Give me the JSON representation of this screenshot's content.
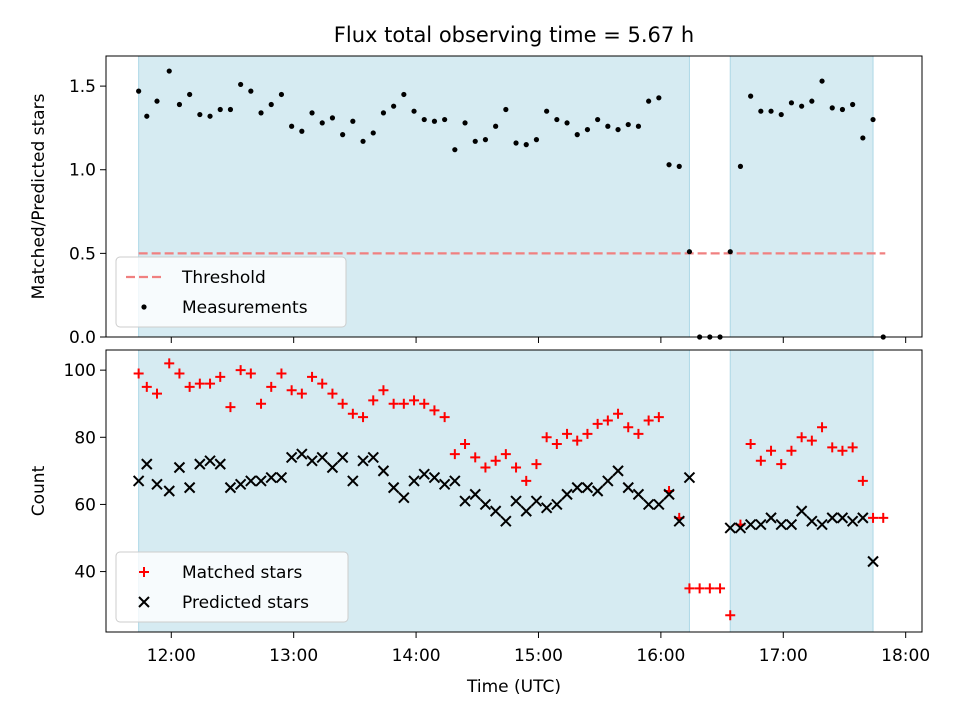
{
  "title": "Flux total observing time = 5.67 h",
  "colors": {
    "shade": "#add8e6",
    "threshold": "#f08080",
    "measurement": "#000000",
    "matched": "#ff0000",
    "predicted": "#000000"
  },
  "chart_data": [
    {
      "type": "scatter",
      "ylabel": "Matched/Predicted stars",
      "ylim": [
        0,
        1.68
      ],
      "xlim": [
        "11:28",
        "18:08"
      ],
      "y_ticks": [
        "0.0",
        "0.5",
        "1.0",
        "1.5"
      ],
      "shaded_intervals": [
        [
          "11:44",
          "16:14"
        ],
        [
          "16:34",
          "17:44"
        ]
      ],
      "legend": {
        "placement": "lower-left",
        "entries": [
          "Threshold",
          "Measurements"
        ]
      },
      "threshold": {
        "name": "Threshold",
        "value": 0.5,
        "x_start": "11:44",
        "x_end": "17:50"
      },
      "series": [
        {
          "name": "Measurements",
          "points": [
            [
              "11:44",
              1.47
            ],
            [
              "11:48",
              1.32
            ],
            [
              "11:53",
              1.41
            ],
            [
              "11:59",
              1.59
            ],
            [
              "12:04",
              1.39
            ],
            [
              "12:09",
              1.45
            ],
            [
              "12:14",
              1.33
            ],
            [
              "12:19",
              1.32
            ],
            [
              "12:24",
              1.36
            ],
            [
              "12:29",
              1.36
            ],
            [
              "12:34",
              1.51
            ],
            [
              "12:39",
              1.47
            ],
            [
              "12:44",
              1.34
            ],
            [
              "12:49",
              1.39
            ],
            [
              "12:54",
              1.45
            ],
            [
              "12:59",
              1.26
            ],
            [
              "13:04",
              1.23
            ],
            [
              "13:09",
              1.34
            ],
            [
              "13:14",
              1.28
            ],
            [
              "13:19",
              1.31
            ],
            [
              "13:24",
              1.21
            ],
            [
              "13:29",
              1.29
            ],
            [
              "13:34",
              1.17
            ],
            [
              "13:39",
              1.22
            ],
            [
              "13:44",
              1.34
            ],
            [
              "13:49",
              1.38
            ],
            [
              "13:54",
              1.45
            ],
            [
              "13:59",
              1.35
            ],
            [
              "14:04",
              1.3
            ],
            [
              "14:09",
              1.29
            ],
            [
              "14:14",
              1.3
            ],
            [
              "14:19",
              1.12
            ],
            [
              "14:24",
              1.28
            ],
            [
              "14:29",
              1.17
            ],
            [
              "14:34",
              1.18
            ],
            [
              "14:39",
              1.26
            ],
            [
              "14:44",
              1.36
            ],
            [
              "14:49",
              1.16
            ],
            [
              "14:54",
              1.15
            ],
            [
              "14:59",
              1.18
            ],
            [
              "15:04",
              1.35
            ],
            [
              "15:09",
              1.3
            ],
            [
              "15:14",
              1.28
            ],
            [
              "15:19",
              1.21
            ],
            [
              "15:24",
              1.24
            ],
            [
              "15:29",
              1.3
            ],
            [
              "15:34",
              1.26
            ],
            [
              "15:39",
              1.24
            ],
            [
              "15:44",
              1.27
            ],
            [
              "15:49",
              1.26
            ],
            [
              "15:54",
              1.41
            ],
            [
              "15:59",
              1.43
            ],
            [
              "16:04",
              1.03
            ],
            [
              "16:09",
              1.02
            ],
            [
              "16:14",
              0.51
            ],
            [
              "16:19",
              0.0
            ],
            [
              "16:24",
              0.0
            ],
            [
              "16:29",
              0.0
            ],
            [
              "16:34",
              0.51
            ],
            [
              "16:39",
              1.02
            ],
            [
              "16:44",
              1.44
            ],
            [
              "16:49",
              1.35
            ],
            [
              "16:54",
              1.35
            ],
            [
              "16:59",
              1.33
            ],
            [
              "17:04",
              1.4
            ],
            [
              "17:09",
              1.38
            ],
            [
              "17:14",
              1.41
            ],
            [
              "17:19",
              1.53
            ],
            [
              "17:24",
              1.37
            ],
            [
              "17:29",
              1.36
            ],
            [
              "17:34",
              1.39
            ],
            [
              "17:39",
              1.19
            ],
            [
              "17:44",
              1.3
            ],
            [
              "17:49",
              0.0
            ]
          ]
        }
      ]
    },
    {
      "type": "scatter",
      "xlabel": "Time (UTC)",
      "ylabel": "Count",
      "ylim": [
        22,
        106
      ],
      "xlim": [
        "11:28",
        "18:08"
      ],
      "x_ticks": [
        "12:00",
        "13:00",
        "14:00",
        "15:00",
        "16:00",
        "17:00",
        "18:00"
      ],
      "y_ticks": [
        "40",
        "60",
        "80",
        "100"
      ],
      "shaded_intervals": [
        [
          "11:44",
          "16:14"
        ],
        [
          "16:34",
          "17:44"
        ]
      ],
      "legend": {
        "placement": "lower-left",
        "entries": [
          "Matched stars",
          "Predicted stars"
        ]
      },
      "series": [
        {
          "name": "Matched stars",
          "marker": "plus",
          "points": [
            [
              "11:44",
              99
            ],
            [
              "11:48",
              95
            ],
            [
              "11:53",
              93
            ],
            [
              "11:59",
              102
            ],
            [
              "12:04",
              99
            ],
            [
              "12:09",
              95
            ],
            [
              "12:14",
              96
            ],
            [
              "12:19",
              96
            ],
            [
              "12:24",
              98
            ],
            [
              "12:29",
              89
            ],
            [
              "12:34",
              100
            ],
            [
              "12:39",
              99
            ],
            [
              "12:44",
              90
            ],
            [
              "12:49",
              95
            ],
            [
              "12:54",
              99
            ],
            [
              "12:59",
              94
            ],
            [
              "13:04",
              93
            ],
            [
              "13:09",
              98
            ],
            [
              "13:14",
              96
            ],
            [
              "13:19",
              93
            ],
            [
              "13:24",
              90
            ],
            [
              "13:29",
              87
            ],
            [
              "13:34",
              86
            ],
            [
              "13:39",
              91
            ],
            [
              "13:44",
              94
            ],
            [
              "13:49",
              90
            ],
            [
              "13:54",
              90
            ],
            [
              "13:59",
              91
            ],
            [
              "14:04",
              90
            ],
            [
              "14:09",
              88
            ],
            [
              "14:14",
              86
            ],
            [
              "14:19",
              75
            ],
            [
              "14:24",
              78
            ],
            [
              "14:29",
              74
            ],
            [
              "14:34",
              71
            ],
            [
              "14:39",
              73
            ],
            [
              "14:44",
              75
            ],
            [
              "14:49",
              71
            ],
            [
              "14:54",
              67
            ],
            [
              "14:59",
              72
            ],
            [
              "15:04",
              80
            ],
            [
              "15:09",
              78
            ],
            [
              "15:14",
              81
            ],
            [
              "15:19",
              79
            ],
            [
              "15:24",
              81
            ],
            [
              "15:29",
              84
            ],
            [
              "15:34",
              85
            ],
            [
              "15:39",
              87
            ],
            [
              "15:44",
              83
            ],
            [
              "15:49",
              81
            ],
            [
              "15:54",
              85
            ],
            [
              "15:59",
              86
            ],
            [
              "16:04",
              64
            ],
            [
              "16:09",
              56
            ],
            [
              "16:14",
              35
            ],
            [
              "16:19",
              35
            ],
            [
              "16:24",
              35
            ],
            [
              "16:29",
              35
            ],
            [
              "16:34",
              27
            ],
            [
              "16:39",
              54
            ],
            [
              "16:44",
              78
            ],
            [
              "16:49",
              73
            ],
            [
              "16:54",
              76
            ],
            [
              "16:59",
              72
            ],
            [
              "17:04",
              76
            ],
            [
              "17:09",
              80
            ],
            [
              "17:14",
              79
            ],
            [
              "17:19",
              83
            ],
            [
              "17:24",
              77
            ],
            [
              "17:29",
              76
            ],
            [
              "17:34",
              77
            ],
            [
              "17:39",
              67
            ],
            [
              "17:44",
              56
            ],
            [
              "17:49",
              56
            ]
          ]
        },
        {
          "name": "Predicted stars",
          "marker": "x",
          "points": [
            [
              "11:44",
              67
            ],
            [
              "11:48",
              72
            ],
            [
              "11:53",
              66
            ],
            [
              "11:59",
              64
            ],
            [
              "12:04",
              71
            ],
            [
              "12:09",
              65
            ],
            [
              "12:14",
              72
            ],
            [
              "12:19",
              73
            ],
            [
              "12:24",
              72
            ],
            [
              "12:29",
              65
            ],
            [
              "12:34",
              66
            ],
            [
              "12:39",
              67
            ],
            [
              "12:44",
              67
            ],
            [
              "12:49",
              68
            ],
            [
              "12:54",
              68
            ],
            [
              "12:59",
              74
            ],
            [
              "13:04",
              75
            ],
            [
              "13:09",
              73
            ],
            [
              "13:14",
              74
            ],
            [
              "13:19",
              71
            ],
            [
              "13:24",
              74
            ],
            [
              "13:29",
              67
            ],
            [
              "13:34",
              73
            ],
            [
              "13:39",
              74
            ],
            [
              "13:44",
              70
            ],
            [
              "13:49",
              65
            ],
            [
              "13:54",
              62
            ],
            [
              "13:59",
              67
            ],
            [
              "14:04",
              69
            ],
            [
              "14:09",
              68
            ],
            [
              "14:14",
              66
            ],
            [
              "14:19",
              67
            ],
            [
              "14:24",
              61
            ],
            [
              "14:29",
              63
            ],
            [
              "14:34",
              60
            ],
            [
              "14:39",
              58
            ],
            [
              "14:44",
              55
            ],
            [
              "14:49",
              61
            ],
            [
              "14:54",
              58
            ],
            [
              "14:59",
              61
            ],
            [
              "15:04",
              59
            ],
            [
              "15:09",
              60
            ],
            [
              "15:14",
              63
            ],
            [
              "15:19",
              65
            ],
            [
              "15:24",
              65
            ],
            [
              "15:29",
              64
            ],
            [
              "15:34",
              67
            ],
            [
              "15:39",
              70
            ],
            [
              "15:44",
              65
            ],
            [
              "15:49",
              63
            ],
            [
              "15:54",
              60
            ],
            [
              "15:59",
              60
            ],
            [
              "16:04",
              63
            ],
            [
              "16:09",
              55
            ],
            [
              "16:14",
              68
            ],
            [
              "16:34",
              53
            ],
            [
              "16:39",
              53
            ],
            [
              "16:44",
              54
            ],
            [
              "16:49",
              54
            ],
            [
              "16:54",
              56
            ],
            [
              "16:59",
              54
            ],
            [
              "17:04",
              54
            ],
            [
              "17:09",
              58
            ],
            [
              "17:14",
              55
            ],
            [
              "17:19",
              54
            ],
            [
              "17:24",
              56
            ],
            [
              "17:29",
              56
            ],
            [
              "17:34",
              55
            ],
            [
              "17:39",
              56
            ],
            [
              "17:44",
              43
            ]
          ]
        }
      ]
    }
  ]
}
